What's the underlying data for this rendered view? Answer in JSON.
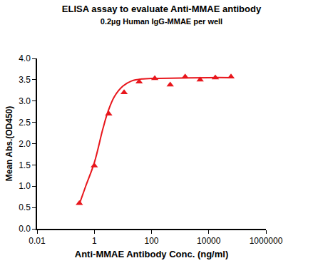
{
  "chart_data": {
    "type": "scatter",
    "title": "ELISA assay to evaluate Anti-MMAE antibody",
    "subtitle": "0.2µg Human IgG-MMAE per well",
    "x_label": "Anti-MMAE Antibody Conc. (ng/ml)",
    "y_label": "Mean Abs.(OD450)",
    "log": "x",
    "grid": false,
    "color": "#e8161c",
    "xlim": [
      0.01,
      1000000
    ],
    "xticks": [
      0.01,
      1,
      100,
      10000,
      1000000
    ],
    "ylim": [
      0,
      4
    ],
    "yticks": [
      {
        "value": 0,
        "label": "0.0"
      },
      {
        "value": 0.5,
        "label": "0.5"
      },
      {
        "value": 1,
        "label": "1.0"
      },
      {
        "value": 1.5,
        "label": "1.5"
      },
      {
        "value": 2,
        "label": "2.0"
      },
      {
        "value": 2.5,
        "label": "2.5"
      },
      {
        "value": 3,
        "label": "3.0"
      },
      {
        "value": 3.5,
        "label": "3.5"
      },
      {
        "value": 4,
        "label": "4.0"
      }
    ],
    "series": [
      {
        "type": "scatter",
        "marker": "triangle-up",
        "x": [
          0.3,
          1,
          3.2,
          11,
          37,
          130,
          450,
          1500,
          5000,
          17000,
          60000
        ],
        "values": [
          0.6,
          1.48,
          2.7,
          3.2,
          3.45,
          3.53,
          3.38,
          3.57,
          3.5,
          3.55,
          3.57
        ]
      },
      {
        "type": "line",
        "line_style": "solid",
        "x": [
          0.3,
          0.5,
          1,
          2,
          3,
          5,
          10,
          20,
          50,
          100,
          1000,
          10000,
          60000
        ],
        "values": [
          0.58,
          1.0,
          1.55,
          2.35,
          2.75,
          3.1,
          3.35,
          3.47,
          3.52,
          3.53,
          3.54,
          3.55,
          3.55
        ]
      }
    ]
  }
}
